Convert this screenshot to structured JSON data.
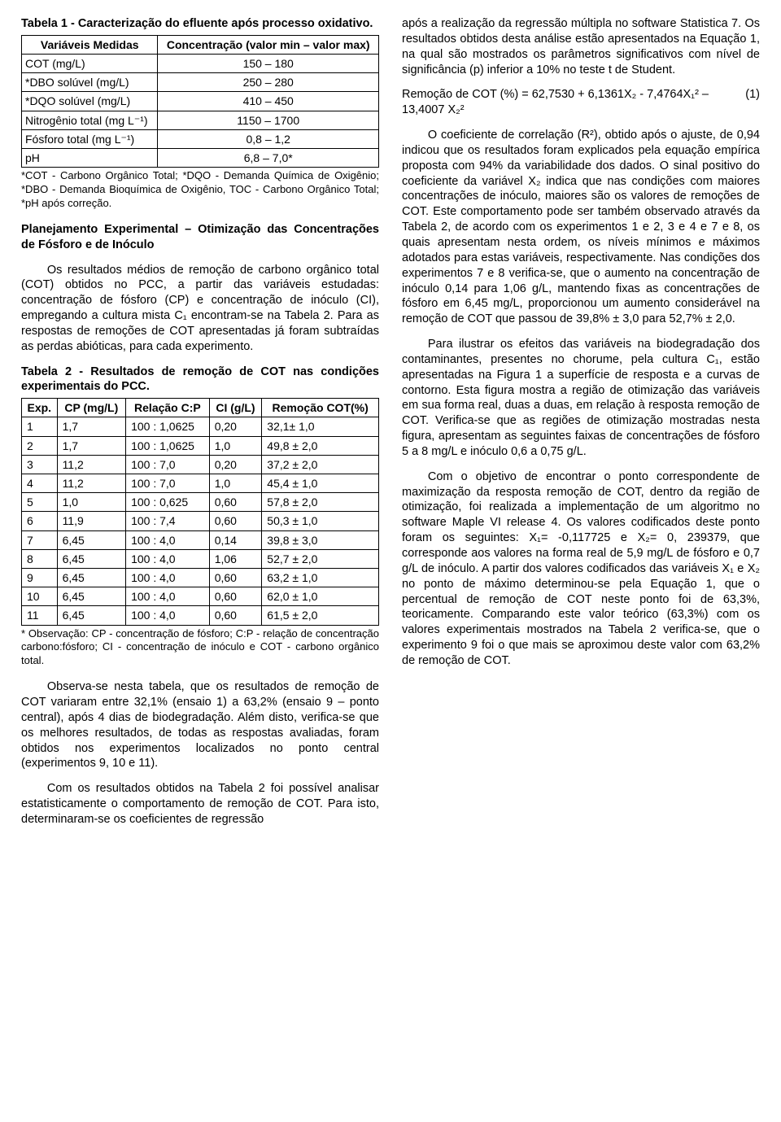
{
  "left": {
    "table1": {
      "title": "Tabela 1 - Caracterização do efluente após processo oxidativo.",
      "head_var": "Variáveis Medidas",
      "head_conc": "Concentração (valor min – valor max)",
      "rows": [
        {
          "var": "COT (mg/L)",
          "val": "150 – 180"
        },
        {
          "var": "*DBO solúvel (mg/L)",
          "val": "250 – 280"
        },
        {
          "var": "*DQO solúvel (mg/L)",
          "val": "410 – 450"
        },
        {
          "var": "Nitrogênio total (mg L⁻¹)",
          "val": "1150 – 1700"
        },
        {
          "var": "Fósforo total (mg L⁻¹)",
          "val": "0,8 – 1,2"
        },
        {
          "var": "pH",
          "val": "6,8 – 7,0*"
        }
      ],
      "footnote": "*COT - Carbono Orgânico Total; *DQO - Demanda Química de Oxigênio; *DBO - Demanda Bioquímica de Oxigênio, TOC - Carbono Orgânico Total; *pH após correção."
    },
    "section_title": "Planejamento Experimental – Otimização das Concentrações de Fósforo e de Inóculo",
    "para1": "Os resultados médios de remoção de carbono orgânico total (COT) obtidos no PCC, a partir das variáveis estudadas: concentração de fósforo (CP) e concentração de inóculo (CI), empregando a cultura mista C₁ encontram-se na Tabela 2. Para as respostas de remoções de COT apresentadas já foram subtraídas as perdas abióticas, para cada experimento.",
    "table2": {
      "title": "Tabela 2 - Resultados de remoção de COT nas condições experimentais do PCC.",
      "head_exp": "Exp.",
      "head_cp": "CP (mg/L)",
      "head_rel": "Relação C:P",
      "head_ci": "CI (g/L)",
      "head_rem": "Remoção COT(%)",
      "rows": [
        {
          "e": "1",
          "cp": "1,7",
          "rel": "100 : 1,0625",
          "ci": "0,20",
          "rem": "32,1± 1,0"
        },
        {
          "e": "2",
          "cp": "1,7",
          "rel": "100 : 1,0625",
          "ci": "1,0",
          "rem": "49,8 ± 2,0"
        },
        {
          "e": "3",
          "cp": "11,2",
          "rel": "100 : 7,0",
          "ci": "0,20",
          "rem": "37,2 ± 2,0"
        },
        {
          "e": "4",
          "cp": "11,2",
          "rel": "100 : 7,0",
          "ci": "1,0",
          "rem": "45,4 ± 1,0"
        },
        {
          "e": "5",
          "cp": "1,0",
          "rel": "100 : 0,625",
          "ci": "0,60",
          "rem": "57,8 ± 2,0"
        },
        {
          "e": "6",
          "cp": "11,9",
          "rel": "100 : 7,4",
          "ci": "0,60",
          "rem": "50,3 ± 1,0"
        },
        {
          "e": "7",
          "cp": "6,45",
          "rel": "100 : 4,0",
          "ci": "0,14",
          "rem": "39,8 ± 3,0"
        },
        {
          "e": "8",
          "cp": "6,45",
          "rel": "100 : 4,0",
          "ci": "1,06",
          "rem": "52,7 ± 2,0"
        },
        {
          "e": "9",
          "cp": "6,45",
          "rel": "100 : 4,0",
          "ci": "0,60",
          "rem": "63,2 ± 1,0"
        },
        {
          "e": "10",
          "cp": "6,45",
          "rel": "100 : 4,0",
          "ci": "0,60",
          "rem": "62,0 ± 1,0"
        },
        {
          "e": "11",
          "cp": "6,45",
          "rel": "100 : 4,0",
          "ci": "0,60",
          "rem": "61,5 ± 2,0"
        }
      ],
      "footnote": "* Observação: CP - concentração de fósforo; C:P - relação de concentração carbono:fósforo; CI - concentração de inóculo e COT - carbono orgânico total."
    },
    "para2": "Observa-se nesta tabela, que os resultados de remoção de COT variaram entre 32,1% (ensaio 1) a 63,2% (ensaio 9 – ponto central), após 4 dias de biodegradação. Além disto, verifica-se que os melhores resultados, de todas as respostas avaliadas, foram obtidos nos experimentos localizados no ponto central (experimentos 9, 10 e 11).",
    "para3": "Com os resultados obtidos na Tabela 2 foi possível analisar estatisticamente o comportamento de remoção de COT. Para isto, determinaram-se os coeficientes de regressão"
  },
  "right": {
    "para1": "após a realização da regressão múltipla no software Statistica 7. Os resultados obtidos desta análise estão apresentados na Equação 1, na qual são mostrados os parâmetros significativos com nível de significância (p) inferior a 10% no teste t de Student.",
    "eq_text": "Remoção de COT (%) = 62,7530 + 6,1361X₂ - 7,4764X₁² – 13,4007 X₂²",
    "eq_num": "(1)",
    "para2": "O coeficiente de correlação (R²), obtido após o ajuste, de 0,94 indicou que os resultados foram explicados pela equação empírica proposta com 94% da variabilidade dos dados. O sinal positivo do coeficiente da variável X₂ indica que nas condições com maiores concentrações de inóculo, maiores são os valores de remoções de COT. Este comportamento pode ser também observado através da Tabela 2, de acordo com os experimentos 1 e 2, 3 e 4 e 7 e 8, os quais apresentam nesta ordem, os níveis mínimos e máximos adotados para estas variáveis, respectivamente. Nas condições dos experimentos 7 e 8 verifica-se, que o aumento na concentração de inóculo 0,14 para 1,06 g/L, mantendo fixas as concentrações de fósforo em 6,45 mg/L, proporcionou um aumento considerável na remoção de COT que passou de 39,8% ± 3,0 para 52,7% ± 2,0.",
    "para3": "Para ilustrar os efeitos das variáveis na biodegradação dos contaminantes, presentes no chorume, pela cultura C₁, estão apresentadas na Figura 1 a superfície de resposta e a curvas de contorno. Esta figura mostra a região de otimização das variáveis em sua forma real, duas a duas, em relação à resposta remoção de COT. Verifica-se que as regiões de otimização mostradas nesta figura, apresentam as seguintes faixas de concentrações de fósforo 5 a 8 mg/L e inóculo 0,6 a 0,75 g/L.",
    "para4": "Com o objetivo de encontrar o ponto correspondente de maximização da resposta remoção de COT, dentro da região de otimização, foi realizada a implementação de um algoritmo no software Maple VI release 4. Os valores codificados deste ponto foram os seguintes: X₁= -0,117725 e X₂= 0, 239379, que corresponde aos valores na forma real de 5,9 mg/L de fósforo e 0,7 g/L de inóculo. A partir dos valores codificados das variáveis X₁ e X₂ no ponto de máximo determinou-se pela Equação 1, que o percentual de remoção de COT neste ponto foi de 63,3%, teoricamente. Comparando este valor teórico (63,3%) com os valores experimentais mostrados na Tabela 2 verifica-se, que o experimento 9 foi o que mais se aproximou deste valor com 63,2% de remoção de COT."
  }
}
